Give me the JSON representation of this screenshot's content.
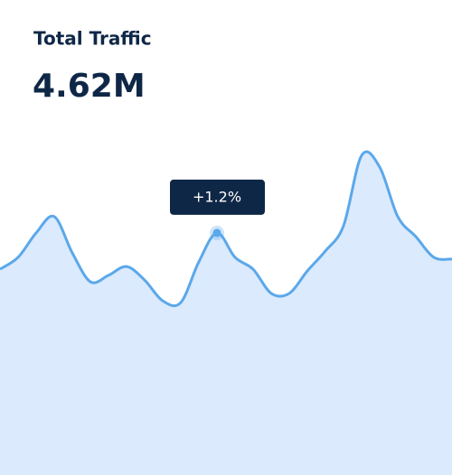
{
  "chart_data": {
    "type": "area",
    "title": "Total Traffic",
    "subtitle": "4.62M",
    "annotation": "+1.2%",
    "values": [
      60.6,
      64.1,
      71.3,
      76.1,
      65.4,
      56.9,
      58.8,
      61.4,
      57.4,
      51.3,
      50.8,
      62.8,
      71.3,
      64.1,
      60.6,
      53.5,
      53.5,
      60.1,
      66.0,
      73.4,
      94.1,
      90.7,
      76.1,
      70.2,
      64.1,
      63.6
    ],
    "ylim": [
      0,
      100
    ],
    "color": "#5ba8ea",
    "fill": "#dbeafc"
  }
}
